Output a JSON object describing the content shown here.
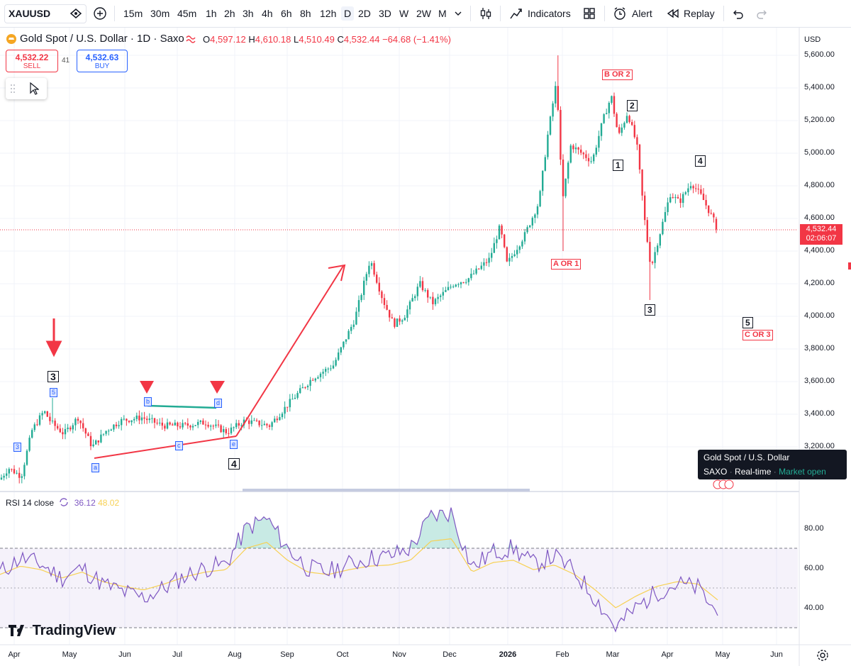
{
  "toolbar": {
    "symbol": "XAUUSD",
    "intervals": [
      "15m",
      "30m",
      "45m",
      "1h",
      "2h",
      "3h",
      "4h",
      "6h",
      "8h",
      "12h",
      "D",
      "2D",
      "3D",
      "W",
      "2W",
      "M"
    ],
    "selected_interval": "D",
    "indicators_label": "Indicators",
    "alert_label": "Alert",
    "replay_label": "Replay"
  },
  "header": {
    "title": "Gold Spot / U.S. Dollar · 1D · Saxo",
    "open_label": "O",
    "open": "4,597.12",
    "high_label": "H",
    "high": "4,610.18",
    "low_label": "L",
    "low": "4,510.49",
    "close_label": "C",
    "close": "4,532.44",
    "change": "−64.68 (−1.41%)",
    "sell_price": "4,532.22",
    "sell_label": "SELL",
    "spread": "41",
    "buy_price": "4,532.63",
    "buy_label": "BUY"
  },
  "price_axis": {
    "currency": "USD",
    "current_price": "4,532.44",
    "countdown": "02:06:07"
  },
  "tooltip": {
    "title": "Gold Spot / U.S. Dollar",
    "source": "SAXO",
    "mode": "Real-time",
    "status": "Market open"
  },
  "rsi": {
    "label": "RSI 14 close",
    "value": "36.12",
    "ma_value": "48.02"
  },
  "branding": "TradingView",
  "annotations": {
    "wave3_left": "3",
    "wave5_sub": "5",
    "wave3_sub": "3",
    "wave4_left": "4",
    "sub_a": "a",
    "sub_b": "b",
    "sub_c": "c",
    "sub_d": "d",
    "sub_e": "e",
    "a_or_1": "A OR 1",
    "b_or_2": "B OR 2",
    "w1": "1",
    "w2": "2",
    "w3": "3",
    "w4": "4",
    "w5": "5",
    "c_or_3": "C OR 3"
  },
  "colors": {
    "up": "#22ab94",
    "down": "#f23645",
    "rsi": "#7e57c2",
    "rsi_ma": "#f7d154",
    "accent": "#2962ff"
  },
  "chart_data": [
    {
      "type": "candlestick",
      "title": "Gold Spot / U.S. Dollar · 1D · Saxo",
      "x_ticks": [
        "Apr",
        "May",
        "Jun",
        "Jul",
        "Aug",
        "Sep",
        "Oct",
        "Nov",
        "Dec",
        "2026",
        "Feb",
        "Mar",
        "Apr",
        "May",
        "Jun"
      ],
      "y_ticks": [
        3200,
        3400,
        3600,
        3800,
        4000,
        4200,
        4400,
        4600,
        4800,
        5000,
        5200,
        5400,
        5600
      ],
      "ylim": [
        2980,
        5680
      ],
      "close_series": [
        [
          "Apr",
          3000
        ],
        [
          "Apr",
          3130
        ],
        [
          "mid-Apr",
          3300
        ],
        [
          "late-Apr",
          3420
        ],
        [
          "May",
          3250
        ],
        [
          "mid-May",
          3200
        ],
        [
          "Jun",
          3370
        ],
        [
          "mid-Jun",
          3390
        ],
        [
          "Jul",
          3340
        ],
        [
          "mid-Jul",
          3350
        ],
        [
          "Aug",
          3300
        ],
        [
          "mid-Aug",
          3340
        ],
        [
          "Sep",
          3480
        ],
        [
          "mid-Sep",
          3680
        ],
        [
          "Oct",
          3880
        ],
        [
          "mid-Oct",
          4350
        ],
        [
          "late-Oct",
          4000
        ],
        [
          "Nov",
          4010
        ],
        [
          "mid-Nov",
          4100
        ],
        [
          "Dec",
          4200
        ],
        [
          "mid-Dec",
          4320
        ],
        [
          "2026",
          4350
        ],
        [
          "mid-Jan",
          4600
        ],
        [
          "late-Jan",
          5300
        ],
        [
          "Feb",
          4700
        ],
        [
          "mid-Feb",
          4950
        ],
        [
          "Mar",
          5300
        ],
        [
          "mid-Mar",
          4950
        ],
        [
          "late-Mar",
          4300
        ],
        [
          "Apr",
          4500
        ],
        [
          "mid-Apr",
          4700
        ],
        [
          "late-Apr",
          4800
        ],
        [
          "May",
          4532.44
        ]
      ],
      "ohlc_last": {
        "open": 4597.12,
        "high": 4610.18,
        "low": 4510.49,
        "close": 4532.44
      },
      "current_price": 4532.44
    },
    {
      "type": "line",
      "title": "RSI 14 close",
      "y_ticks": [
        40,
        60,
        80
      ],
      "bands": [
        30,
        50,
        70
      ],
      "series": [
        {
          "values": [
            58,
            65,
            62,
            55,
            60,
            52,
            48,
            45,
            50,
            56,
            60,
            62,
            80,
            85,
            70,
            60,
            58,
            62,
            65,
            66,
            70,
            86,
            88,
            60,
            68,
            70,
            62,
            66,
            58,
            45,
            30,
            40,
            48,
            52,
            50,
            36.12
          ]
        }
      ]
    }
  ]
}
